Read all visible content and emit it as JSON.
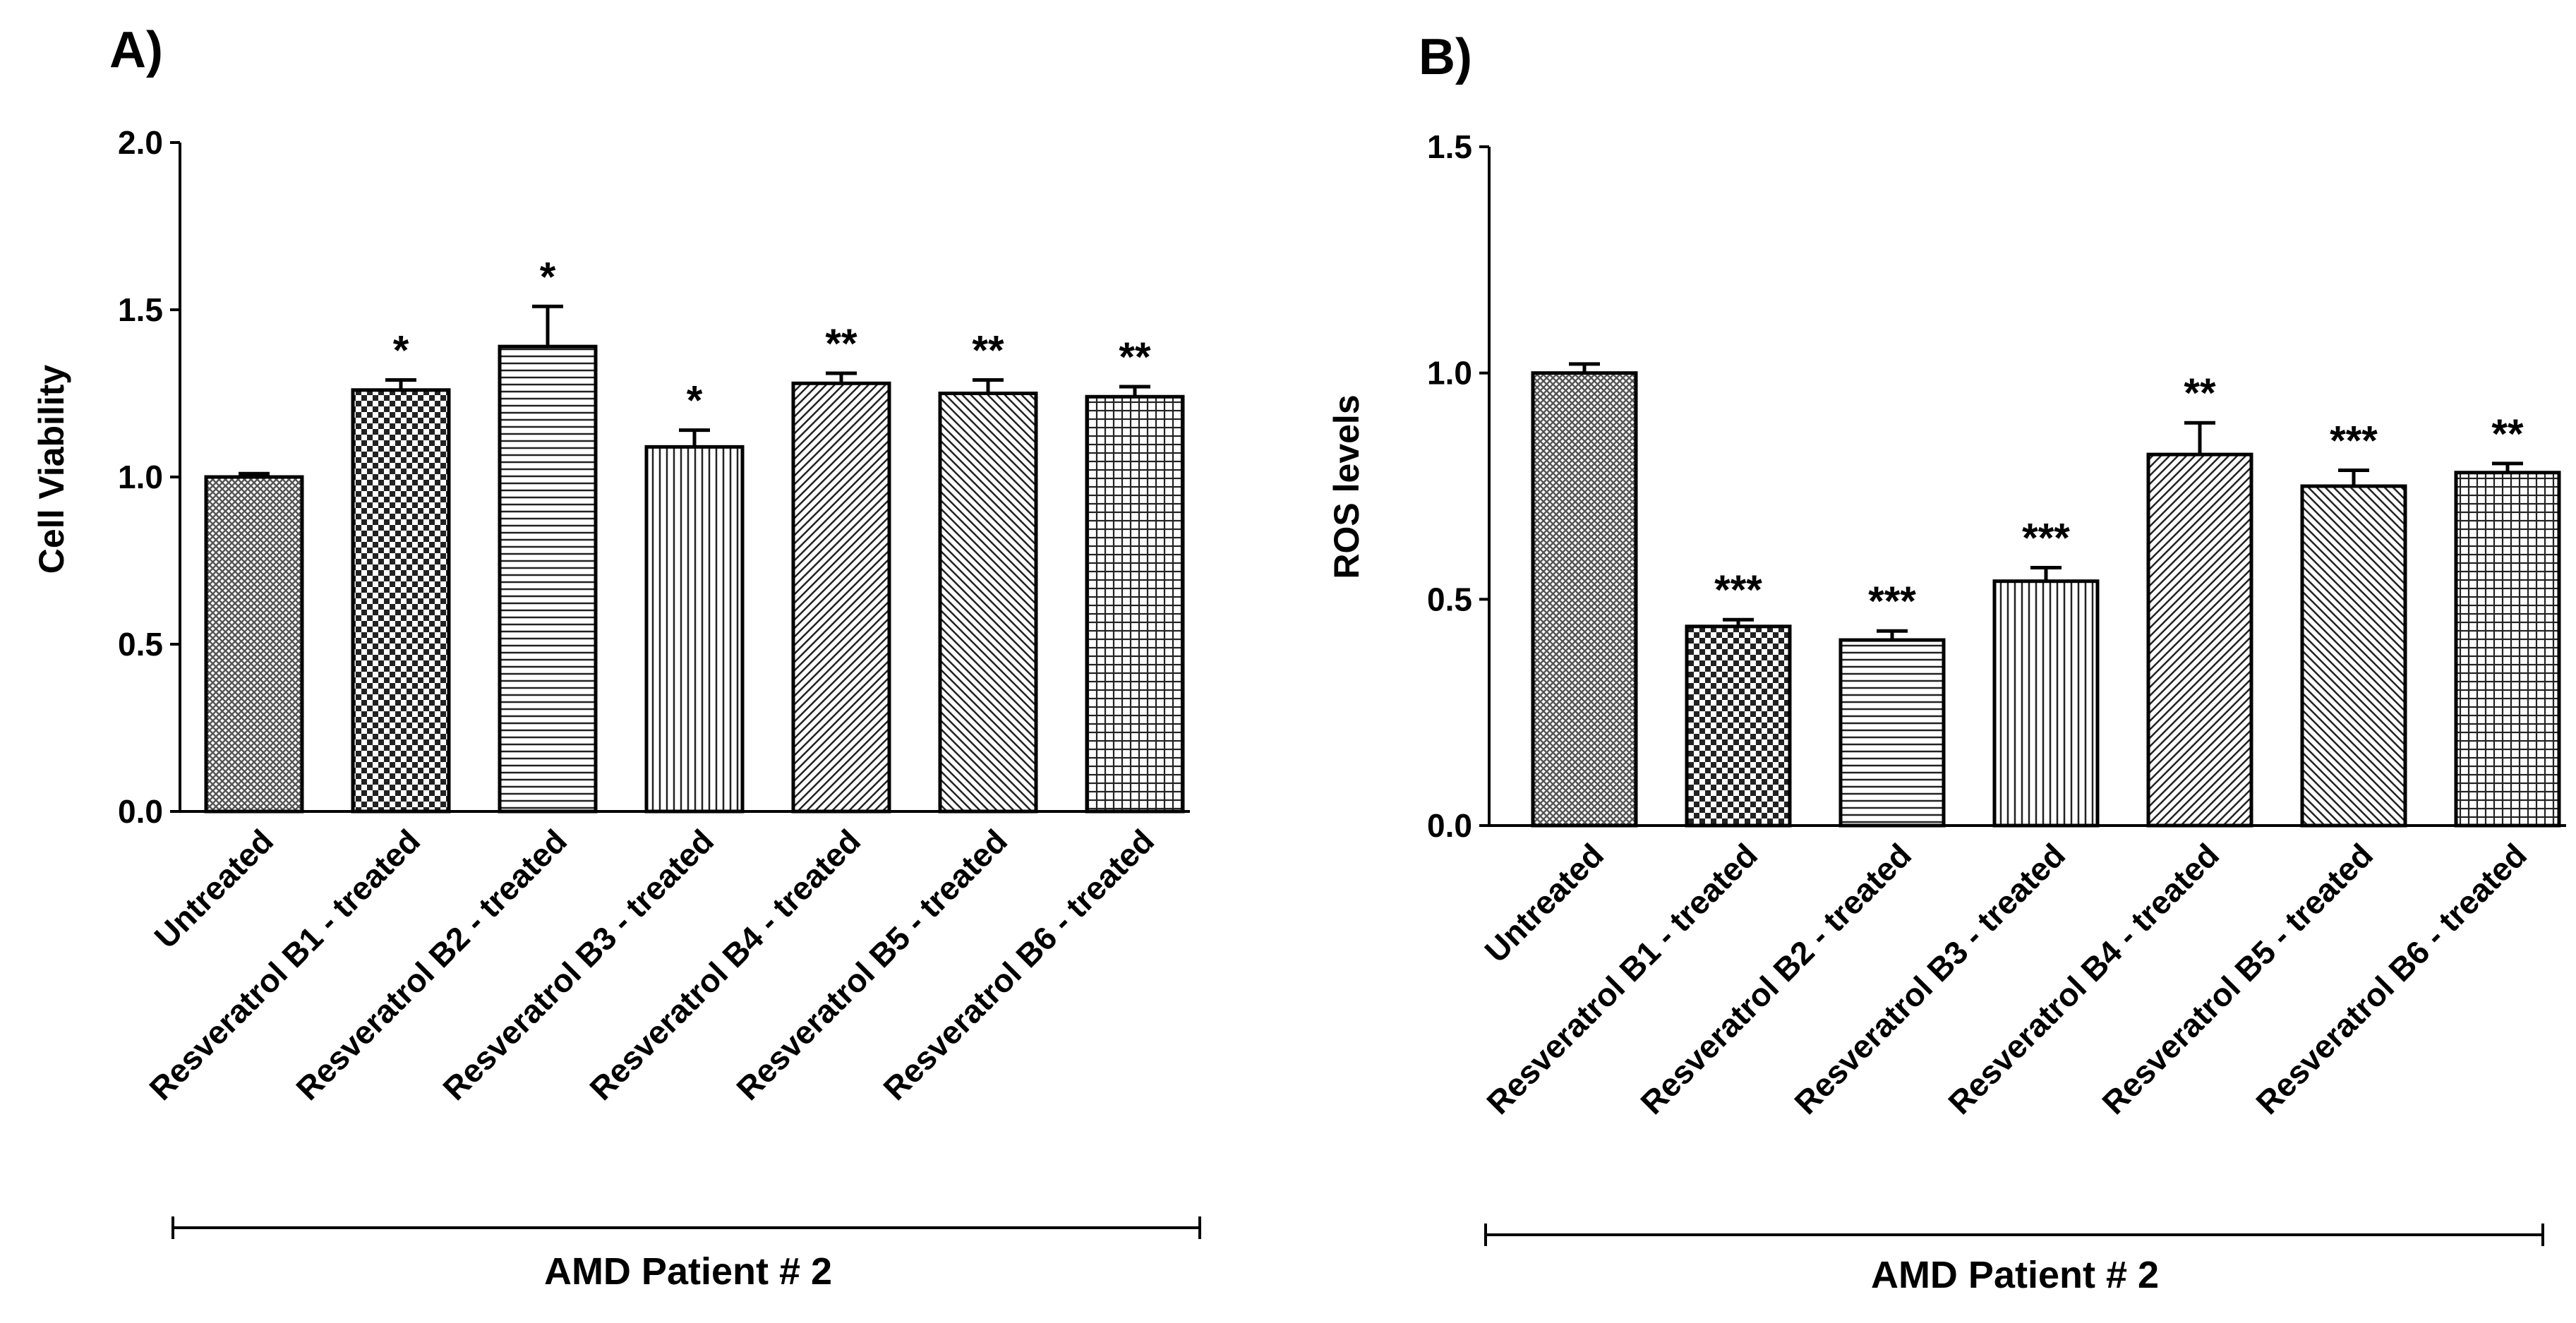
{
  "chart_data": [
    {
      "panel": "A)",
      "type": "bar",
      "ylabel": "Cell Viability",
      "xlabel": "AMD Patient # 2",
      "ylim": [
        0,
        2.0
      ],
      "yticks": [
        "0.0",
        "0.5",
        "1.0",
        "1.5",
        "2.0"
      ],
      "categories": [
        "Untreated",
        "Resveratrol B1 - treated",
        "Resveratrol B2 - treated",
        "Resveratrol B3 - treated",
        "Resveratrol B4 - treated",
        "Resveratrol B5 - treated",
        "Resveratrol B6 - treated"
      ],
      "values": [
        1.0,
        1.26,
        1.39,
        1.09,
        1.28,
        1.25,
        1.24
      ],
      "errors": [
        0.01,
        0.03,
        0.12,
        0.05,
        0.03,
        0.04,
        0.03
      ],
      "significance": [
        "",
        "*",
        "*",
        "*",
        "**",
        "**",
        "**"
      ],
      "patterns": [
        "grid",
        "checker",
        "hlines",
        "vlines",
        "diag",
        "diag2",
        "squares"
      ]
    },
    {
      "panel": "B)",
      "type": "bar",
      "ylabel": "ROS levels",
      "xlabel": "AMD Patient # 2",
      "ylim": [
        0,
        1.5
      ],
      "yticks": [
        "0.0",
        "0.5",
        "1.0",
        "1.5"
      ],
      "categories": [
        "Untreated",
        "Resveratrol B1 - treated",
        "Resveratrol B2 - treated",
        "Resveratrol B3 - treated",
        "Resveratrol B4 - treated",
        "Resveratrol B5 - treated",
        "Resveratrol B6 - treated"
      ],
      "values": [
        1.0,
        0.44,
        0.41,
        0.54,
        0.82,
        0.75,
        0.78
      ],
      "errors": [
        0.02,
        0.015,
        0.02,
        0.03,
        0.07,
        0.035,
        0.02
      ],
      "significance": [
        "",
        "***",
        "***",
        "***",
        "**",
        "***",
        "**"
      ],
      "patterns": [
        "grid",
        "checker",
        "hlines",
        "vlines",
        "diag",
        "diag2",
        "squares"
      ]
    }
  ]
}
